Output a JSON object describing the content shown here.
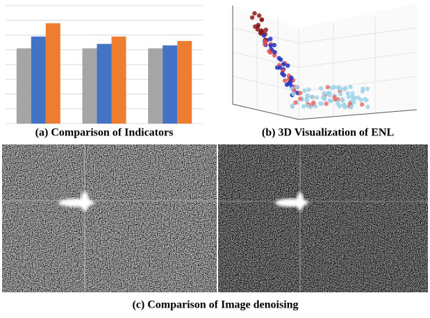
{
  "chart_data": {
    "type": "bar",
    "categories": [
      null,
      null,
      null
    ],
    "series": [
      {
        "color": "#a5a5a5",
        "values": [
          5.1,
          5.1,
          5.1
        ]
      },
      {
        "color": "#4472c4",
        "values": [
          5.9,
          5.4,
          5.3
        ]
      },
      {
        "color": "#ed7d31",
        "values": [
          6.8,
          5.9,
          5.6
        ]
      }
    ],
    "ylim": [
      0,
      8
    ],
    "yticks": [
      0,
      1,
      2,
      3,
      4,
      5,
      6,
      7,
      8
    ],
    "grid": true
  },
  "captions": [
    "(a) Comparison of Indicators",
    "(b) 3D Visualization of ENL",
    "(c) Comparison of Image denoising"
  ]
}
